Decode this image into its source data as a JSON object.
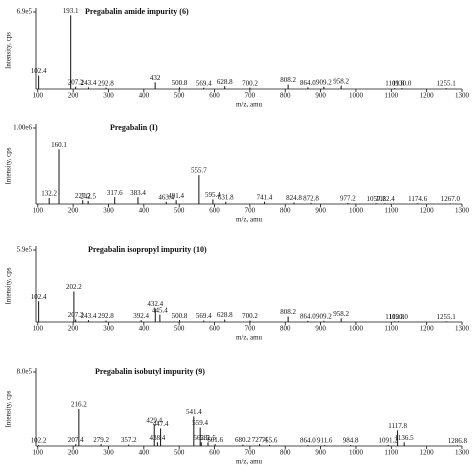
{
  "chart_data": [
    {
      "type": "stem",
      "title": "Pregabalin amide impurity (6)",
      "ylabel": "Intensity, cps",
      "xlabel": "m/z, amu",
      "x": [
        102.4,
        193.1,
        207.2,
        243.4,
        292.8,
        432,
        500.8,
        569.4,
        628.8,
        700.2,
        808.2,
        864.0,
        909.2,
        958.2,
        1109.8,
        1130.0,
        1255.1
      ],
      "labels": [
        "102.4",
        "193.1",
        "207.2",
        "243.4",
        "292.8",
        "432",
        "500.8",
        "569.4",
        "628.8",
        "700.2",
        "808.2",
        "864.0",
        "909.2",
        "958.2",
        "1109.8",
        "1130.0",
        "1255.1"
      ],
      "values": [
        120000,
        660000,
        20000,
        15000,
        12000,
        60000,
        15000,
        12000,
        25000,
        12000,
        40000,
        15000,
        20000,
        30000,
        8000,
        8000,
        8000
      ],
      "xlim": [
        95,
        1300
      ],
      "xticks": [
        100,
        200,
        300,
        400,
        500,
        600,
        700,
        800,
        900,
        1000,
        1100,
        1200,
        1300
      ],
      "ylim": [
        0,
        690000
      ],
      "yticks": [
        {
          "value": 690000,
          "label": "6.9e5"
        }
      ],
      "color": "#111111"
    },
    {
      "type": "stem",
      "title": "Pregabalin (I)",
      "ylabel": "Intensity, cps",
      "xlabel": "m/z, amu",
      "x": [
        132.2,
        160.1,
        227.2,
        242.5,
        317.6,
        383.4,
        463.4,
        491.4,
        555.7,
        595.4,
        631.8,
        741.4,
        824.8,
        872.8,
        977.2,
        1057.2,
        1082.4,
        1174.6,
        1267.0
      ],
      "labels": [
        "132.2",
        "160.1",
        "227.2",
        "242.5",
        "317.6",
        "383.4",
        "463.4",
        "491.4",
        "555.7",
        "595.4",
        "631.8",
        "741.4",
        "824.8",
        "872.8",
        "977.2",
        "1057.2",
        "1082.4",
        "1174.6",
        "1267.0"
      ],
      "values": [
        80000,
        720000,
        50000,
        40000,
        90000,
        90000,
        30000,
        50000,
        380000,
        60000,
        30000,
        30000,
        20000,
        15000,
        15000,
        10000,
        10000,
        10000,
        8000
      ],
      "xlim": [
        95,
        1300
      ],
      "xticks": [
        100,
        200,
        300,
        400,
        500,
        600,
        700,
        800,
        900,
        1000,
        1100,
        1200,
        1300
      ],
      "ylim": [
        0,
        1000000
      ],
      "yticks": [
        {
          "value": 1000000,
          "label": "1.00e6"
        }
      ],
      "color": "#111111"
    },
    {
      "type": "stem",
      "title": "Pregabalin isopropyl impurity (10)",
      "ylabel": "Intensity, cps",
      "xlabel": "m/z, amu",
      "x": [
        102.4,
        202.2,
        207.2,
        243.4,
        292.8,
        392.4,
        432.4,
        445.4,
        500.8,
        569.4,
        628.8,
        700.2,
        808.2,
        864.0,
        909.2,
        958.2,
        1109.8,
        1120.0,
        1255.1
      ],
      "labels": [
        "102.4",
        "202.2",
        "207.2",
        "243.4",
        "292.8",
        "392.4",
        "432.4",
        "445.4",
        "500.8",
        "569.4",
        "628.8",
        "700.2",
        "808.2",
        "864.0",
        "909.2",
        "958.2",
        "1109.8",
        "1120.0",
        "1255.1"
      ],
      "values": [
        170000,
        250000,
        20000,
        15000,
        12000,
        15000,
        110000,
        60000,
        15000,
        12000,
        20000,
        12000,
        45000,
        10000,
        10000,
        30000,
        6000,
        6000,
        6000
      ],
      "xlim": [
        95,
        1300
      ],
      "xticks": [
        100,
        200,
        300,
        400,
        500,
        600,
        700,
        800,
        900,
        1000,
        1100,
        1200,
        1300
      ],
      "ylim": [
        0,
        590000
      ],
      "yticks": [
        {
          "value": 590000,
          "label": "5.9e5"
        }
      ],
      "color": "#111111"
    },
    {
      "type": "stem",
      "title": "Pregabalin isobutyl impurity (9)",
      "ylabel": "Intensity, cps",
      "xlabel": "m/z, amu",
      "x": [
        102.2,
        207.4,
        216.2,
        279.2,
        357.2,
        429.4,
        438.4,
        447.4,
        541.4,
        559.4,
        562.5,
        581.5,
        601.6,
        680.2,
        727.4,
        755.6,
        864.0,
        911.6,
        984.8,
        1091.2,
        1117.8,
        1136.5,
        1286.8
      ],
      "labels": [
        "102.2",
        "207.4",
        "216.2",
        "279.2",
        "357.2",
        "429.4",
        "438.4",
        "447.4",
        "541.4",
        "559.4",
        "562.5",
        "581.5",
        "601.6",
        "680.2",
        "727.4",
        "755.6",
        "864.0",
        "911.6",
        "984.8",
        "1091.2",
        "1117.8",
        "1136.5",
        "1286.8"
      ],
      "values": [
        10000,
        20000,
        400000,
        20000,
        15000,
        230000,
        40000,
        190000,
        320000,
        200000,
        40000,
        40000,
        20000,
        15000,
        20000,
        12000,
        10000,
        10000,
        10000,
        12000,
        170000,
        40000,
        8000
      ],
      "xlim": [
        95,
        1300
      ],
      "xticks": [
        100,
        200,
        300,
        400,
        500,
        600,
        700,
        800,
        900,
        1000,
        1100,
        1200,
        1300
      ],
      "ylim": [
        0,
        800000
      ],
      "yticks": [
        {
          "value": 800000,
          "label": "8.0e5"
        }
      ],
      "color": "#111111"
    }
  ]
}
